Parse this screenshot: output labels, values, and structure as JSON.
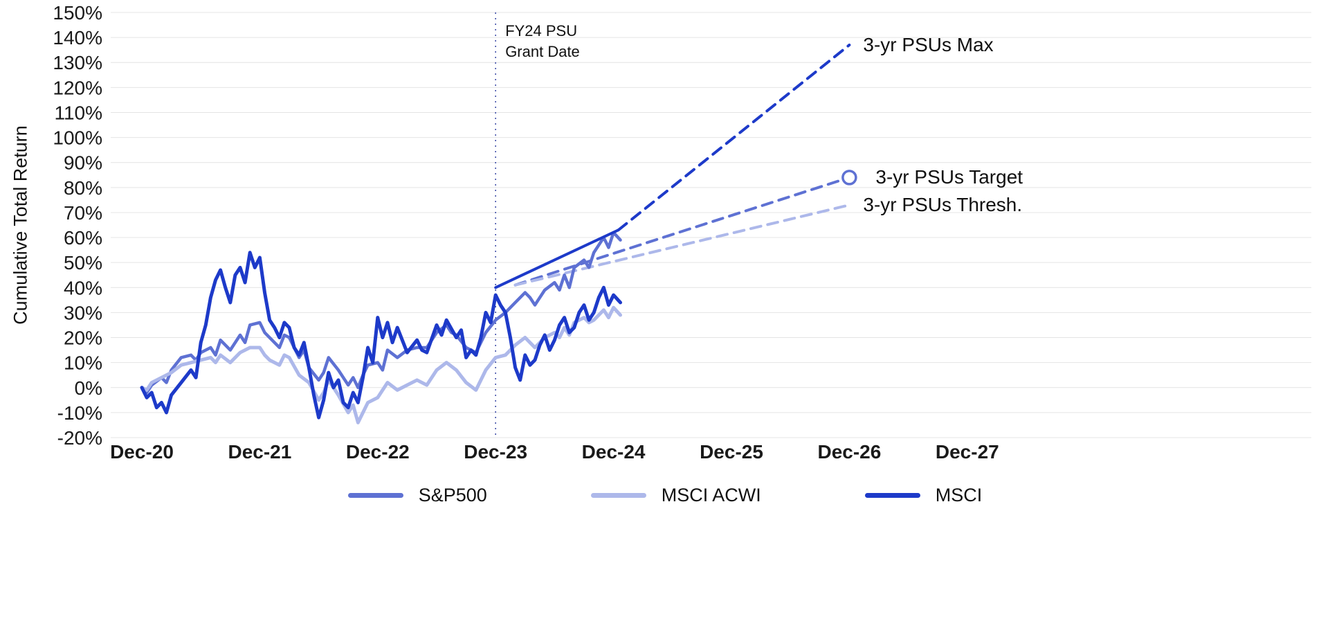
{
  "chart_data": {
    "type": "line",
    "title": "",
    "ylabel": "Cumulative Total Return",
    "xlabel": "",
    "grid": "horizontal",
    "legend_position": "bottom",
    "y_axis": {
      "min": -20,
      "max": 150,
      "step": 10,
      "suffix": "%"
    },
    "x_axis": {
      "tick_months": [
        0,
        12,
        24,
        36,
        48,
        60,
        72,
        84
      ],
      "tick_labels": [
        "Dec-20",
        "Dec-21",
        "Dec-22",
        "Dec-23",
        "Dec-24",
        "Dec-25",
        "Dec-26",
        "Dec-27"
      ]
    },
    "colors": {
      "grid": "#e4e4e4",
      "text": "#1a1a1a"
    },
    "series": [
      {
        "name": "S&P500",
        "color": "#5e71d3",
        "width": 4.5,
        "points": [
          [
            0,
            0
          ],
          [
            0.5,
            -2
          ],
          [
            1,
            1
          ],
          [
            2,
            4
          ],
          [
            2.5,
            2
          ],
          [
            3,
            7
          ],
          [
            4,
            12
          ],
          [
            5,
            13
          ],
          [
            5.5,
            11
          ],
          [
            6,
            14
          ],
          [
            7,
            16
          ],
          [
            7.5,
            13
          ],
          [
            8,
            19
          ],
          [
            9,
            15
          ],
          [
            10,
            21
          ],
          [
            10.5,
            18
          ],
          [
            11,
            25
          ],
          [
            12,
            26
          ],
          [
            12.5,
            22
          ],
          [
            13,
            20
          ],
          [
            14,
            16
          ],
          [
            14.5,
            21
          ],
          [
            15,
            20
          ],
          [
            16,
            12
          ],
          [
            16.5,
            15
          ],
          [
            17,
            8
          ],
          [
            18,
            3
          ],
          [
            18.5,
            6
          ],
          [
            19,
            12
          ],
          [
            20,
            7
          ],
          [
            21,
            1
          ],
          [
            21.5,
            4
          ],
          [
            22,
            0
          ],
          [
            22.5,
            5
          ],
          [
            23,
            9
          ],
          [
            24,
            10
          ],
          [
            24.5,
            7
          ],
          [
            25,
            15
          ],
          [
            26,
            12
          ],
          [
            27,
            15
          ],
          [
            28,
            16
          ],
          [
            29,
            16
          ],
          [
            30,
            22
          ],
          [
            31,
            25
          ],
          [
            31.5,
            22
          ],
          [
            32,
            21
          ],
          [
            33,
            16
          ],
          [
            34,
            14
          ],
          [
            35,
            22
          ],
          [
            36,
            27
          ],
          [
            37,
            30
          ],
          [
            38,
            34
          ],
          [
            39,
            38
          ],
          [
            39.5,
            36
          ],
          [
            40,
            33
          ],
          [
            41,
            39
          ],
          [
            42,
            42
          ],
          [
            42.5,
            39
          ],
          [
            43,
            45
          ],
          [
            43.5,
            40
          ],
          [
            44,
            48
          ],
          [
            45,
            51
          ],
          [
            45.5,
            48
          ],
          [
            46,
            54
          ],
          [
            47,
            60
          ],
          [
            47.5,
            56
          ],
          [
            48,
            62
          ],
          [
            48.7,
            59
          ]
        ]
      },
      {
        "name": "MSCI ACWI",
        "color": "#adb8ea",
        "width": 5,
        "points": [
          [
            0,
            0
          ],
          [
            0.5,
            -1
          ],
          [
            1,
            2
          ],
          [
            2,
            4
          ],
          [
            3,
            6
          ],
          [
            4,
            9
          ],
          [
            5,
            10
          ],
          [
            6,
            11
          ],
          [
            7,
            12
          ],
          [
            7.5,
            10
          ],
          [
            8,
            13
          ],
          [
            9,
            10
          ],
          [
            10,
            14
          ],
          [
            11,
            16
          ],
          [
            12,
            16
          ],
          [
            12.5,
            13
          ],
          [
            13,
            11
          ],
          [
            14,
            9
          ],
          [
            14.5,
            13
          ],
          [
            15,
            12
          ],
          [
            16,
            5
          ],
          [
            17,
            2
          ],
          [
            18,
            -5
          ],
          [
            18.5,
            -2
          ],
          [
            19,
            3
          ],
          [
            20,
            -3
          ],
          [
            21,
            -10
          ],
          [
            21.5,
            -7
          ],
          [
            22,
            -14
          ],
          [
            22.5,
            -10
          ],
          [
            23,
            -6
          ],
          [
            24,
            -4
          ],
          [
            25,
            2
          ],
          [
            26,
            -1
          ],
          [
            27,
            1
          ],
          [
            28,
            3
          ],
          [
            29,
            1
          ],
          [
            30,
            7
          ],
          [
            31,
            10
          ],
          [
            32,
            7
          ],
          [
            33,
            2
          ],
          [
            34,
            -1
          ],
          [
            35,
            7
          ],
          [
            36,
            12
          ],
          [
            37,
            13
          ],
          [
            38,
            17
          ],
          [
            39,
            20
          ],
          [
            40,
            16
          ],
          [
            41,
            20
          ],
          [
            42,
            22
          ],
          [
            42.5,
            20
          ],
          [
            43,
            24
          ],
          [
            43.5,
            21
          ],
          [
            44,
            26
          ],
          [
            45,
            28
          ],
          [
            45.5,
            26
          ],
          [
            46,
            27
          ],
          [
            47,
            31
          ],
          [
            47.5,
            28
          ],
          [
            48,
            32
          ],
          [
            48.7,
            29
          ]
        ]
      },
      {
        "name": "MSCI",
        "color": "#1d3ac9",
        "width": 5,
        "points": [
          [
            0,
            0
          ],
          [
            0.5,
            -4
          ],
          [
            1,
            -2
          ],
          [
            1.5,
            -8
          ],
          [
            2,
            -6
          ],
          [
            2.5,
            -10
          ],
          [
            3,
            -3
          ],
          [
            4,
            2
          ],
          [
            5,
            7
          ],
          [
            5.5,
            4
          ],
          [
            6,
            18
          ],
          [
            6.5,
            25
          ],
          [
            7,
            36
          ],
          [
            7.5,
            43
          ],
          [
            8,
            47
          ],
          [
            8.5,
            40
          ],
          [
            9,
            34
          ],
          [
            9.5,
            45
          ],
          [
            10,
            48
          ],
          [
            10.5,
            42
          ],
          [
            11,
            54
          ],
          [
            11.5,
            48
          ],
          [
            12,
            52
          ],
          [
            12.5,
            38
          ],
          [
            13,
            27
          ],
          [
            13.5,
            24
          ],
          [
            14,
            20
          ],
          [
            14.5,
            26
          ],
          [
            15,
            24
          ],
          [
            15.5,
            16
          ],
          [
            16,
            13
          ],
          [
            16.5,
            18
          ],
          [
            17,
            8
          ],
          [
            17.5,
            -3
          ],
          [
            18,
            -12
          ],
          [
            18.5,
            -5
          ],
          [
            19,
            6
          ],
          [
            19.5,
            0
          ],
          [
            20,
            3
          ],
          [
            20.5,
            -6
          ],
          [
            21,
            -8
          ],
          [
            21.5,
            -2
          ],
          [
            22,
            -6
          ],
          [
            22.5,
            4
          ],
          [
            23,
            16
          ],
          [
            23.5,
            10
          ],
          [
            24,
            28
          ],
          [
            24.5,
            20
          ],
          [
            25,
            26
          ],
          [
            25.5,
            18
          ],
          [
            26,
            24
          ],
          [
            27,
            14
          ],
          [
            28,
            19
          ],
          [
            28.5,
            15
          ],
          [
            29,
            14
          ],
          [
            30,
            25
          ],
          [
            30.5,
            21
          ],
          [
            31,
            27
          ],
          [
            32,
            20
          ],
          [
            32.5,
            23
          ],
          [
            33,
            12
          ],
          [
            33.5,
            15
          ],
          [
            34,
            13
          ],
          [
            34.5,
            20
          ],
          [
            35,
            30
          ],
          [
            35.5,
            26
          ],
          [
            36,
            37
          ],
          [
            36.5,
            33
          ],
          [
            37,
            30
          ],
          [
            37.5,
            20
          ],
          [
            38,
            8
          ],
          [
            38.5,
            3
          ],
          [
            39,
            13
          ],
          [
            39.5,
            9
          ],
          [
            40,
            11
          ],
          [
            40.5,
            17
          ],
          [
            41,
            21
          ],
          [
            41.5,
            15
          ],
          [
            42,
            19
          ],
          [
            42.5,
            25
          ],
          [
            43,
            28
          ],
          [
            43.5,
            22
          ],
          [
            44,
            24
          ],
          [
            44.5,
            30
          ],
          [
            45,
            33
          ],
          [
            45.5,
            27
          ],
          [
            46,
            30
          ],
          [
            46.5,
            36
          ],
          [
            47,
            40
          ],
          [
            47.5,
            33
          ],
          [
            48,
            37
          ],
          [
            48.7,
            34
          ]
        ]
      }
    ],
    "projections": [
      {
        "label": "3-yr PSUs Max",
        "color": "#1d3ac9",
        "points": [
          [
            36,
            40
          ],
          [
            48.5,
            63
          ],
          [
            72,
            137
          ]
        ],
        "solid_until": 48.5,
        "end_marker": "none",
        "label_value": 137,
        "z": "above"
      },
      {
        "label": "3-yr PSUs Target",
        "color": "#5e71d3",
        "points": [
          [
            38,
            41
          ],
          [
            72,
            84
          ]
        ],
        "solid_until": null,
        "end_marker": "open-circle",
        "label_value": 84,
        "z": "below"
      },
      {
        "label": "3-yr PSUs Thresh.",
        "color": "#adb8ea",
        "points": [
          [
            38,
            41
          ],
          [
            72,
            73
          ]
        ],
        "solid_until": null,
        "end_marker": "none",
        "label_value": 73,
        "z": "below"
      }
    ],
    "annotation": {
      "month": 36,
      "label_lines": [
        "FY24 PSU",
        "Grant Date"
      ],
      "line_color": "#3f4ea8"
    }
  }
}
